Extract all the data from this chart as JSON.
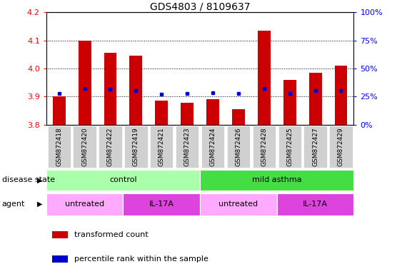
{
  "title": "GDS4803 / 8109637",
  "samples": [
    "GSM872418",
    "GSM872420",
    "GSM872422",
    "GSM872419",
    "GSM872421",
    "GSM872423",
    "GSM872424",
    "GSM872426",
    "GSM872428",
    "GSM872425",
    "GSM872427",
    "GSM872429"
  ],
  "bar_values": [
    3.9,
    4.1,
    4.055,
    4.045,
    3.885,
    3.878,
    3.892,
    3.855,
    4.135,
    3.96,
    3.985,
    4.01
  ],
  "percentile_values": [
    3.91,
    3.928,
    3.926,
    3.922,
    3.908,
    3.91,
    3.913,
    3.91,
    3.93,
    3.91,
    3.921,
    3.922
  ],
  "ylim": [
    3.8,
    4.2
  ],
  "yticks_left": [
    3.8,
    3.9,
    4.0,
    4.1,
    4.2
  ],
  "yticks_right": [
    0,
    25,
    50,
    75,
    100
  ],
  "bar_color": "#cc0000",
  "percentile_color": "#0000cc",
  "bar_width": 0.5,
  "disease_state_groups": [
    {
      "label": "control",
      "start": 0,
      "end": 6,
      "color": "#aaffaa"
    },
    {
      "label": "mild asthma",
      "start": 6,
      "end": 12,
      "color": "#44dd44"
    }
  ],
  "agent_groups": [
    {
      "label": "untreated",
      "start": 0,
      "end": 3,
      "color": "#ffaaff"
    },
    {
      "label": "IL-17A",
      "start": 3,
      "end": 6,
      "color": "#dd44dd"
    },
    {
      "label": "untreated",
      "start": 6,
      "end": 9,
      "color": "#ffaaff"
    },
    {
      "label": "IL-17A",
      "start": 9,
      "end": 12,
      "color": "#dd44dd"
    }
  ],
  "title_fontsize": 10,
  "axis_fontsize": 8,
  "tick_fontsize": 8,
  "sample_fontsize": 6.5,
  "label_fontsize": 8,
  "legend_fontsize": 8,
  "group_row_fontsize": 8
}
